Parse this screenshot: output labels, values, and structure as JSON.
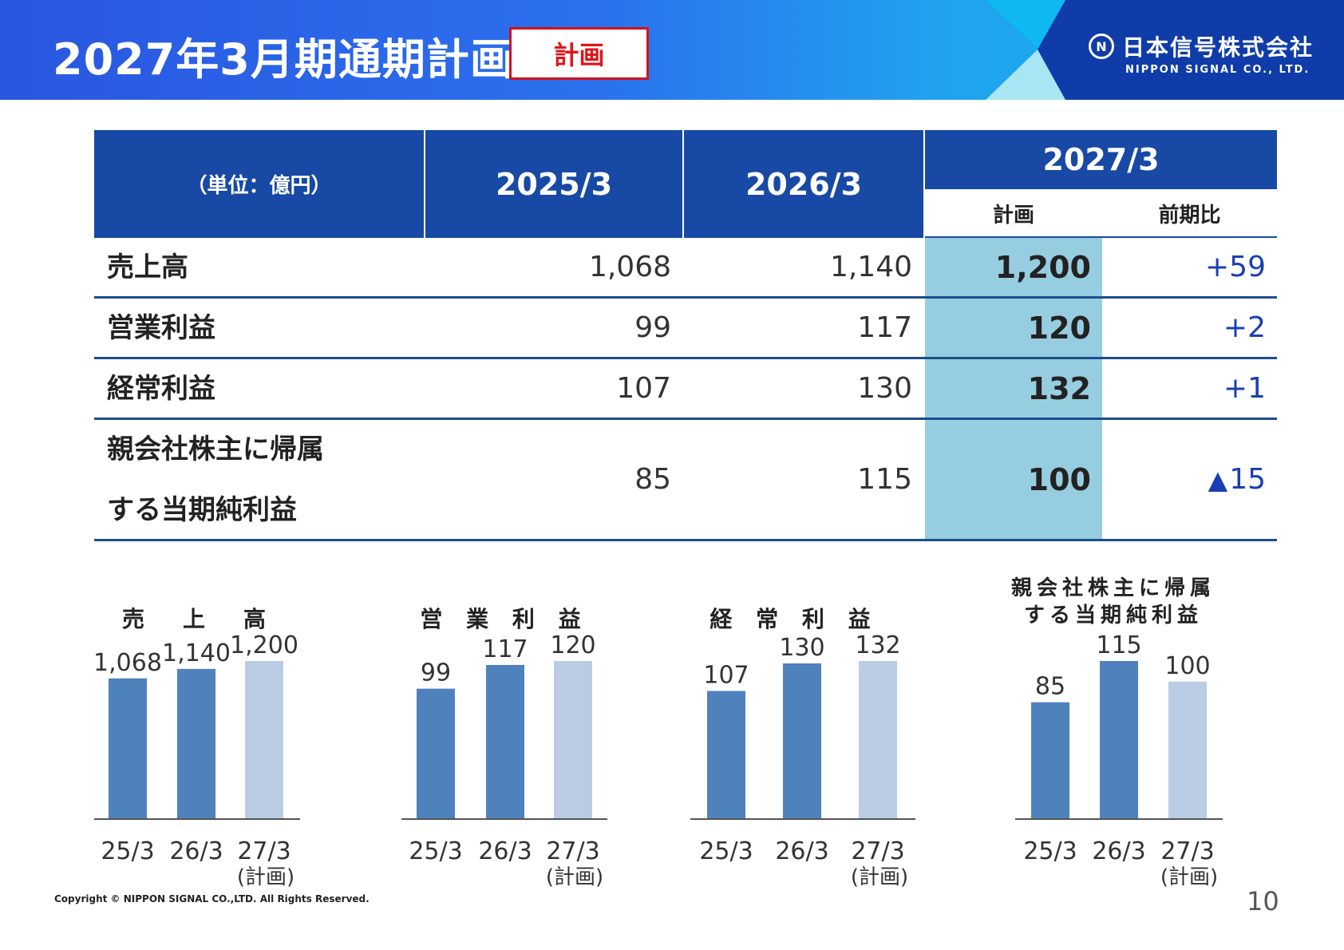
{
  "header": {
    "title": "2027年3月期通期計画",
    "badge": "計画",
    "logo_jp": "日本信号株式会社",
    "logo_en": "NIPPON SIGNAL CO., LTD.",
    "logo_mark": "N",
    "colors": {
      "header_start": "#2a56e0",
      "header_end": "#0fb8f0",
      "badge_red": "#e0141c"
    }
  },
  "table": {
    "unit": "（単位：億円）",
    "col_2025": "2025/3",
    "col_2026": "2026/3",
    "col_2027": "2027/3",
    "sub_plan": "計画",
    "sub_diff": "前期比",
    "rows": [
      {
        "label": "売上高",
        "v2025": "1,068",
        "v2026": "1,140",
        "plan": "1,200",
        "diff": "+59"
      },
      {
        "label": "営業利益",
        "v2025": "99",
        "v2026": "117",
        "plan": "120",
        "diff": "+2"
      },
      {
        "label": "経常利益",
        "v2025": "107",
        "v2026": "130",
        "plan": "132",
        "diff": "+1"
      },
      {
        "label_line1": "親会社株主に帰属",
        "label_line2": "する当期純利益",
        "v2025": "85",
        "v2026": "115",
        "plan": "100",
        "diff_mark": "▲",
        "diff": "15"
      }
    ],
    "colors": {
      "header_blue": "#1749a5",
      "plan_highlight": "#97cde0",
      "diff_text": "#1a3fb3"
    }
  },
  "chart_data": [
    {
      "type": "bar",
      "title": "売　上　高",
      "categories": [
        "25/3",
        "26/3",
        "27/3"
      ],
      "category_note": "(計画)",
      "values": [
        1068,
        1140,
        1200
      ],
      "value_labels": [
        "1,068",
        "1,140",
        "1,200"
      ],
      "ylim": [
        0,
        1200
      ],
      "colors": [
        "#4f81bd",
        "#4f81bd",
        "#b9cce4"
      ]
    },
    {
      "type": "bar",
      "title": "営 業 利 益",
      "categories": [
        "25/3",
        "26/3",
        "27/3"
      ],
      "category_note": "(計画)",
      "values": [
        99,
        117,
        120
      ],
      "value_labels": [
        "99",
        "117",
        "120"
      ],
      "ylim": [
        0,
        120
      ],
      "colors": [
        "#4f81bd",
        "#4f81bd",
        "#b9cce4"
      ]
    },
    {
      "type": "bar",
      "title": "経 常 利 益",
      "categories": [
        "25/3",
        "26/3",
        "27/3"
      ],
      "category_note": "(計画)",
      "values": [
        107,
        130,
        132
      ],
      "value_labels": [
        "107",
        "130",
        "132"
      ],
      "ylim": [
        0,
        132
      ],
      "colors": [
        "#4f81bd",
        "#4f81bd",
        "#b9cce4"
      ]
    },
    {
      "type": "bar",
      "title_line1": "親会社株主に帰属",
      "title_line2": "する当期純利益",
      "categories": [
        "25/3",
        "26/3",
        "27/3"
      ],
      "category_note": "(計画)",
      "values": [
        85,
        115,
        100
      ],
      "value_labels": [
        "85",
        "115",
        "100"
      ],
      "ylim": [
        0,
        115
      ],
      "colors": [
        "#4f81bd",
        "#4f81bd",
        "#b9cce4"
      ]
    }
  ],
  "footer": {
    "copyright": "Copyright © NIPPON SIGNAL CO.,LTD. All Rights Reserved.",
    "page": "10"
  }
}
